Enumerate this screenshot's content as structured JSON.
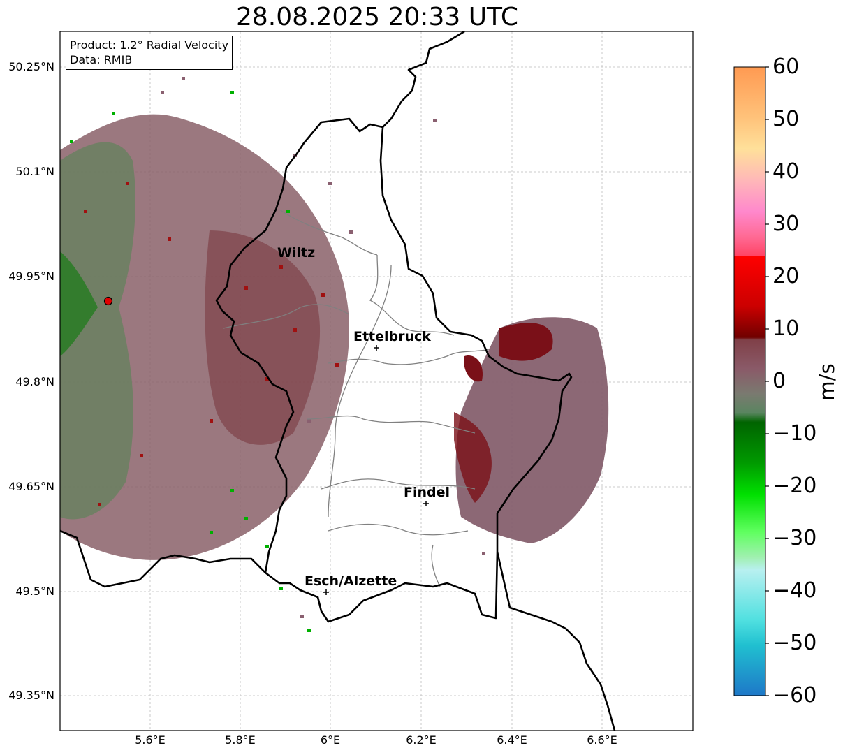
{
  "title": "28.08.2025 20:33 UTC",
  "info": {
    "product_line": "Product: 1.2° Radial Velocity",
    "data_line": "Data: RMIB"
  },
  "lat_labels": [
    "50.25°N",
    "50.1°N",
    "49.95°N",
    "49.8°N",
    "49.65°N",
    "49.5°N",
    "49.35°N"
  ],
  "lon_labels": [
    "5.6°E",
    "5.8°E",
    "6°E",
    "6.2°E",
    "6.4°E",
    "6.6°E"
  ],
  "cities": {
    "wiltz": "Wiltz",
    "ettelbruck": "Ettelbruck",
    "findel": "Findel",
    "esch": "Esch/Alzette"
  },
  "colorbar": {
    "unit": "m/s",
    "ticks": [
      "60",
      "50",
      "40",
      "30",
      "20",
      "10",
      "0",
      "−10",
      "−20",
      "−30",
      "−40",
      "−50",
      "−60"
    ],
    "range": [
      -60,
      60
    ]
  },
  "colors": {
    "radar_marker": "#e00000",
    "border": "#000000",
    "canton_lines": "#808080"
  }
}
